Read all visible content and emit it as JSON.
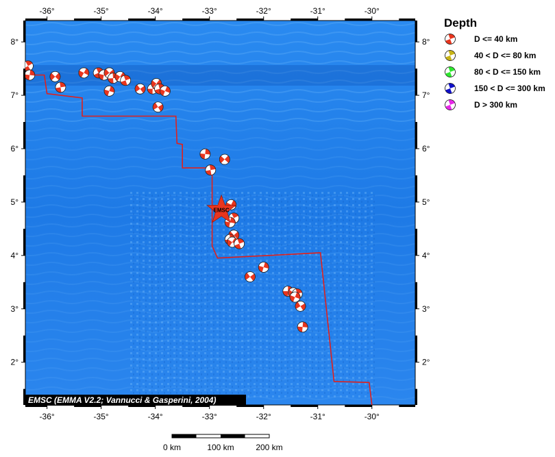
{
  "map": {
    "lon_range": [
      -36.4,
      -29.2
    ],
    "lat_range": [
      1.2,
      8.4
    ],
    "lon_ticks": [
      "-36°",
      "-35°",
      "-34°",
      "-33°",
      "-32°",
      "-31°",
      "-30°"
    ],
    "lat_ticks": [
      "8°",
      "7°",
      "6°",
      "5°",
      "4°",
      "3°",
      "2°"
    ],
    "ocean_color": "#1f7be8",
    "boundary_color": "#e0201c",
    "plate_boundary": [
      [
        -36.4,
        7.38
      ],
      [
        -36.05,
        7.38
      ],
      [
        -36.0,
        7.03
      ],
      [
        -35.35,
        6.95
      ],
      [
        -35.35,
        6.61
      ],
      [
        -33.62,
        6.61
      ],
      [
        -33.6,
        6.1
      ],
      [
        -33.5,
        6.08
      ],
      [
        -33.5,
        5.64
      ],
      [
        -32.95,
        5.64
      ],
      [
        -32.95,
        4.18
      ],
      [
        -32.85,
        3.95
      ],
      [
        -30.95,
        4.05
      ],
      [
        -30.7,
        1.64
      ],
      [
        -30.05,
        1.62
      ],
      [
        -30.0,
        1.2
      ]
    ],
    "credit": "EMSC (EMMA V2.2; Vannucci & Gasperini, 2004)",
    "epicenter": {
      "lon": -32.78,
      "lat": 4.85,
      "label": "EMSC",
      "color": "#e8351e"
    }
  },
  "events": [
    {
      "lon": -36.35,
      "lat": 7.55,
      "depth_class": "shallow"
    },
    {
      "lon": -36.32,
      "lat": 7.38,
      "depth_class": "shallow"
    },
    {
      "lon": -35.85,
      "lat": 7.35,
      "depth_class": "shallow"
    },
    {
      "lon": -35.75,
      "lat": 7.15,
      "depth_class": "shallow"
    },
    {
      "lon": -35.32,
      "lat": 7.42,
      "depth_class": "shallow"
    },
    {
      "lon": -35.05,
      "lat": 7.42,
      "depth_class": "shallow"
    },
    {
      "lon": -34.95,
      "lat": 7.38,
      "depth_class": "shallow"
    },
    {
      "lon": -34.85,
      "lat": 7.42,
      "depth_class": "shallow"
    },
    {
      "lon": -34.78,
      "lat": 7.32,
      "depth_class": "shallow"
    },
    {
      "lon": -34.65,
      "lat": 7.35,
      "depth_class": "shallow"
    },
    {
      "lon": -34.55,
      "lat": 7.28,
      "depth_class": "shallow"
    },
    {
      "lon": -34.85,
      "lat": 7.08,
      "depth_class": "shallow"
    },
    {
      "lon": -34.28,
      "lat": 7.12,
      "depth_class": "shallow"
    },
    {
      "lon": -34.05,
      "lat": 7.12,
      "depth_class": "shallow"
    },
    {
      "lon": -33.98,
      "lat": 7.22,
      "depth_class": "shallow"
    },
    {
      "lon": -33.92,
      "lat": 7.12,
      "depth_class": "shallow"
    },
    {
      "lon": -33.82,
      "lat": 7.08,
      "depth_class": "shallow"
    },
    {
      "lon": -33.95,
      "lat": 6.78,
      "depth_class": "shallow"
    },
    {
      "lon": -33.08,
      "lat": 5.9,
      "depth_class": "shallow"
    },
    {
      "lon": -32.72,
      "lat": 5.8,
      "depth_class": "shallow"
    },
    {
      "lon": -32.98,
      "lat": 5.6,
      "depth_class": "shallow"
    },
    {
      "lon": -32.6,
      "lat": 4.95,
      "depth_class": "shallow"
    },
    {
      "lon": -32.55,
      "lat": 4.7,
      "depth_class": "shallow"
    },
    {
      "lon": -32.62,
      "lat": 4.62,
      "depth_class": "shallow"
    },
    {
      "lon": -32.55,
      "lat": 4.38,
      "depth_class": "shallow"
    },
    {
      "lon": -32.62,
      "lat": 4.3,
      "depth_class": "shallow"
    },
    {
      "lon": -32.58,
      "lat": 4.25,
      "depth_class": "shallow"
    },
    {
      "lon": -32.45,
      "lat": 4.22,
      "depth_class": "shallow"
    },
    {
      "lon": -32.0,
      "lat": 3.78,
      "depth_class": "shallow"
    },
    {
      "lon": -32.25,
      "lat": 3.6,
      "depth_class": "shallow"
    },
    {
      "lon": -31.55,
      "lat": 3.33,
      "depth_class": "shallow"
    },
    {
      "lon": -31.45,
      "lat": 3.3,
      "depth_class": "shallow"
    },
    {
      "lon": -31.38,
      "lat": 3.28,
      "depth_class": "shallow"
    },
    {
      "lon": -31.42,
      "lat": 3.22,
      "depth_class": "shallow"
    },
    {
      "lon": -31.32,
      "lat": 3.05,
      "depth_class": "shallow"
    },
    {
      "lon": -31.28,
      "lat": 2.66,
      "depth_class": "shallow"
    }
  ],
  "legend": {
    "title": "Depth",
    "items": [
      {
        "label": "D <= 40 km",
        "color": "#e8351e"
      },
      {
        "label": "40 < D <= 80 km",
        "color": "#c8b418"
      },
      {
        "label": "80 < D <= 150 km",
        "color": "#2ee82e"
      },
      {
        "label": "150 < D <= 300 km",
        "color": "#1010c8"
      },
      {
        "label": "D > 300 km",
        "color": "#e828e8"
      }
    ]
  },
  "scale_bar": {
    "labels": [
      "0 km",
      "100 km",
      "200 km"
    ]
  }
}
